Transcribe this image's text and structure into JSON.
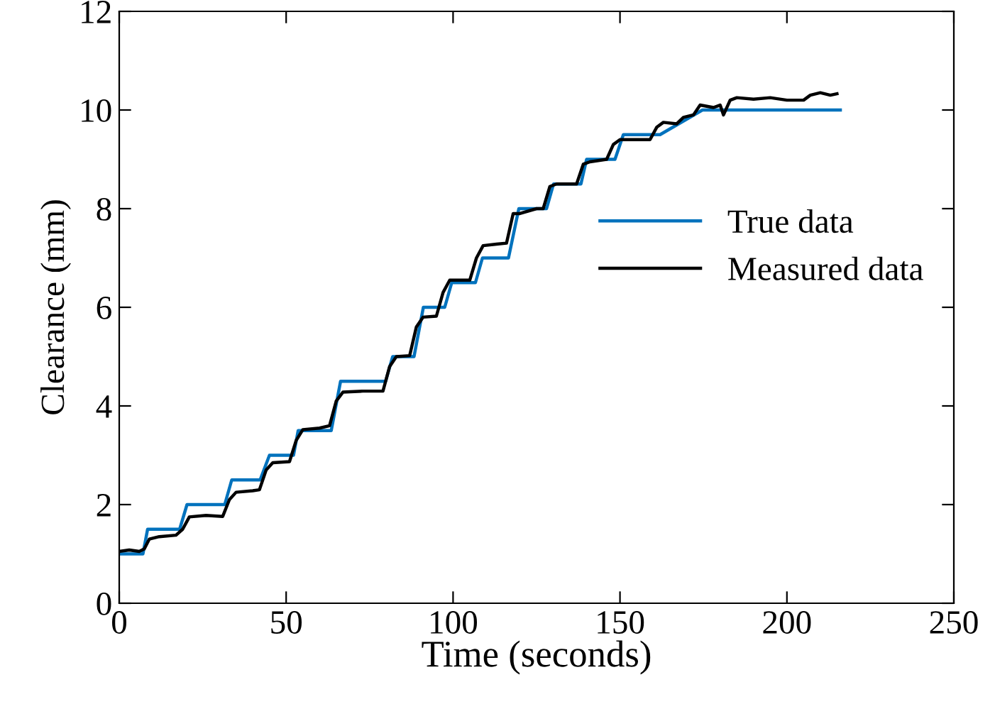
{
  "chart_data": {
    "type": "line",
    "xlabel": "Time (seconds)",
    "ylabel": "Clearance (mm)",
    "xlim": [
      0,
      250
    ],
    "xticks": [
      0,
      50,
      100,
      150,
      200,
      250
    ],
    "ylim": [
      0,
      12
    ],
    "yticks": [
      0,
      2,
      4,
      6,
      8,
      10,
      12
    ],
    "grid": false,
    "legend": "right",
    "line_style": "solid",
    "marker": "none",
    "series": [
      {
        "name": "True data",
        "color": "#0072bd",
        "x": [
          0,
          7.1,
          8.5,
          18.1,
          20.3,
          31.6,
          33.7,
          42.2,
          45,
          52.2,
          53.6,
          63.5,
          66.3,
          79.8,
          81.9,
          88.3,
          91.1,
          97.5,
          99.6,
          106.7,
          108.8,
          116.6,
          119.7,
          128,
          130.1,
          138.3,
          140,
          148.5,
          151,
          162,
          174.7,
          216
        ],
        "values": [
          1,
          1,
          1.5,
          1.5,
          2,
          2,
          2.5,
          2.5,
          3,
          3,
          3.5,
          3.5,
          4.5,
          4.5,
          5,
          5,
          6,
          6,
          6.5,
          6.5,
          7,
          7,
          8,
          8,
          8.5,
          8.5,
          9,
          9,
          9.5,
          9.5,
          10,
          10
        ]
      },
      {
        "name": "Measured data",
        "color": "#000000",
        "x": [
          0,
          3,
          6,
          7.5,
          9,
          12,
          17,
          19,
          21,
          26,
          31,
          33,
          35,
          40,
          42,
          44,
          46,
          51,
          53,
          55,
          60,
          63,
          65,
          67,
          73,
          79,
          81,
          83,
          87,
          89,
          91,
          95,
          97,
          99,
          105,
          107,
          109,
          113,
          116,
          118,
          120,
          125,
          127,
          129,
          131,
          137,
          139,
          141,
          146,
          148,
          150,
          155,
          159,
          161,
          163,
          167,
          169,
          172,
          174,
          178,
          180,
          181,
          183,
          185,
          190,
          195,
          200,
          205,
          207,
          210,
          213,
          215
        ],
        "values": [
          1.05,
          1.08,
          1.05,
          1.1,
          1.3,
          1.35,
          1.38,
          1.5,
          1.75,
          1.78,
          1.76,
          2.1,
          2.25,
          2.28,
          2.3,
          2.7,
          2.85,
          2.87,
          3.3,
          3.52,
          3.55,
          3.6,
          4.1,
          4.28,
          4.3,
          4.3,
          4.8,
          5.0,
          5.02,
          5.6,
          5.8,
          5.82,
          6.3,
          6.55,
          6.55,
          7.0,
          7.25,
          7.28,
          7.3,
          7.9,
          7.9,
          8.0,
          8.0,
          8.45,
          8.5,
          8.5,
          8.9,
          8.95,
          9.0,
          9.3,
          9.4,
          9.4,
          9.4,
          9.65,
          9.75,
          9.72,
          9.85,
          9.9,
          10.1,
          10.05,
          10.1,
          9.9,
          10.2,
          10.25,
          10.22,
          10.25,
          10.2,
          10.2,
          10.3,
          10.35,
          10.3,
          10.33
        ]
      }
    ]
  }
}
